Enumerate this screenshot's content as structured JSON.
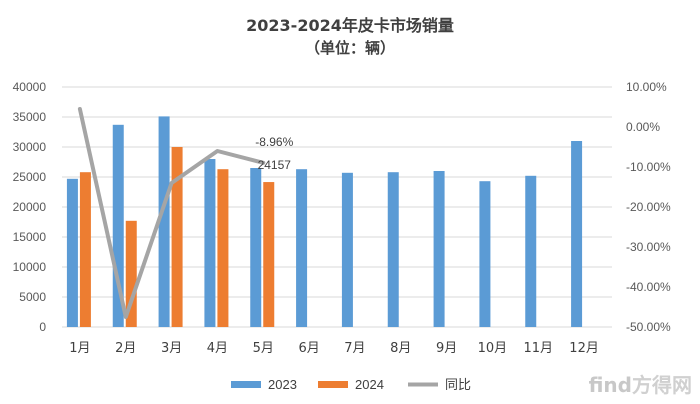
{
  "chart_data": {
    "type": "bar",
    "title": "2023-2024年皮卡市场销量",
    "subtitle": "（单位：辆）",
    "categories": [
      "1月",
      "2月",
      "3月",
      "4月",
      "5月",
      "6月",
      "7月",
      "8月",
      "9月",
      "10月",
      "11月",
      "12月"
    ],
    "series": [
      {
        "name": "2023",
        "type": "bar",
        "axis": "left",
        "color": "#5b9bd5",
        "values": [
          24700,
          33700,
          35100,
          28000,
          26500,
          26300,
          25700,
          25800,
          26000,
          24300,
          25200,
          31000
        ]
      },
      {
        "name": "2024",
        "type": "bar",
        "axis": "left",
        "color": "#ed7d31",
        "values": [
          25800,
          17700,
          30000,
          26300,
          24157,
          null,
          null,
          null,
          null,
          null,
          null,
          null
        ]
      },
      {
        "name": "同比",
        "type": "line",
        "axis": "right",
        "color": "#a5a5a5",
        "values": [
          4.5,
          -47.5,
          -14.0,
          -6.0,
          -8.96,
          null,
          null,
          null,
          null,
          null,
          null,
          null
        ]
      }
    ],
    "left_axis": {
      "min": 0,
      "max": 40000,
      "step": 5000,
      "ticks": [
        "0",
        "5000",
        "10000",
        "15000",
        "20000",
        "25000",
        "30000",
        "35000",
        "40000"
      ]
    },
    "right_axis": {
      "min": -50,
      "max": 10,
      "step": 10,
      "ticks": [
        "-50.00%",
        "-40.00%",
        "-30.00%",
        "-20.00%",
        "-10.00%",
        "0.00%",
        "10.00%"
      ]
    },
    "annotations": [
      {
        "text": "-8.96%",
        "series": "同比",
        "index": 4
      },
      {
        "text": "24157",
        "series": "2024",
        "index": 4
      }
    ],
    "grid": true,
    "legend": "bottom",
    "legend_entries": [
      "2023",
      "2024",
      "同比"
    ]
  },
  "watermark": {
    "latin": "find",
    "cjk": "方得网"
  }
}
